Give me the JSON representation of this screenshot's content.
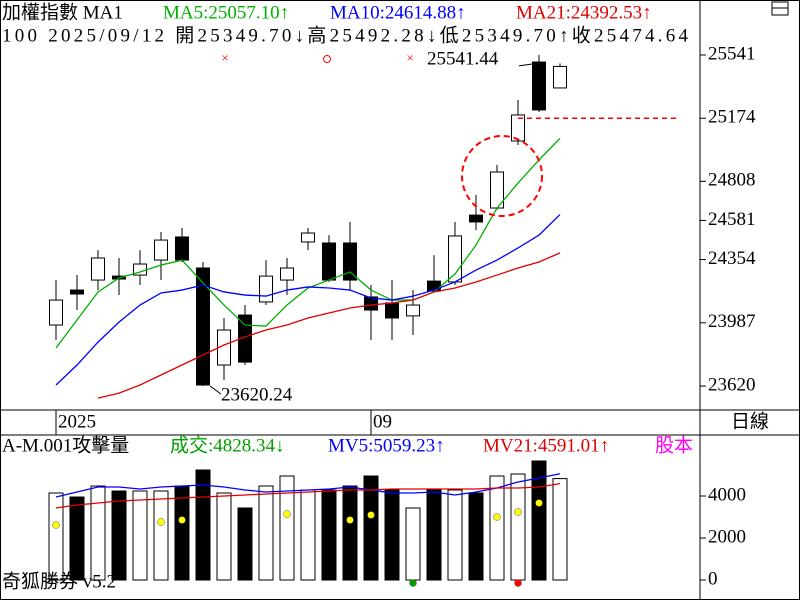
{
  "chart_data": [
    {
      "type": "candlestick",
      "title": "加權指數 MA1",
      "info": "100 2025/09/12 開25349.70↓高25492.28↓低25349.70↑收25474.64",
      "period": "日線",
      "categories": [
        "2025",
        null,
        null,
        null,
        null,
        null,
        null,
        null,
        null,
        null,
        null,
        null,
        null,
        null,
        null,
        "09",
        null,
        null,
        null,
        null,
        null,
        null,
        null,
        null,
        null
      ],
      "open": [
        23974,
        24177,
        24235,
        24258,
        24264,
        24351,
        24485,
        24305,
        23742,
        24032,
        24108,
        24235,
        24456,
        24450,
        24450,
        24137,
        24102,
        24027,
        24229,
        24224,
        24612,
        24653,
        25042,
        25500,
        25349.7
      ],
      "high": [
        24235,
        24264,
        24409,
        24363,
        24409,
        24514,
        24537,
        24340,
        24015,
        24090,
        24351,
        24363,
        24537,
        24496,
        24572,
        24206,
        24235,
        24177,
        24380,
        24572,
        24729,
        24903,
        25280,
        25541.44,
        25492.28
      ],
      "low": [
        23887,
        24061,
        24177,
        24148,
        24206,
        24235,
        24340,
        23620.24,
        23655,
        23742,
        24090,
        24148,
        24409,
        24224,
        24177,
        23887,
        23887,
        23916,
        24166,
        24206,
        24525,
        24642,
        25019,
        25210,
        25349.7
      ],
      "close": [
        24119,
        24154,
        24363,
        24241,
        24328,
        24467,
        24351,
        23626,
        23945,
        23759,
        24258,
        24305,
        24508,
        24235,
        24235,
        24061,
        24015,
        24090,
        24171,
        24491,
        24572,
        24862,
        25193,
        25222,
        25474.64
      ],
      "series": [
        {
          "name": "MA5:25057.10↑",
          "color": "#00b000",
          "values": [
            23841,
            24003,
            24166,
            24247,
            24282,
            24322,
            24351,
            24218,
            24090,
            23974,
            23968,
            24090,
            24189,
            24235,
            24282,
            24177,
            24119,
            24119,
            24166,
            24270,
            24438,
            24653,
            24798,
            24932,
            25057.1
          ]
        },
        {
          "name": "MA10:24614.88↑",
          "color": "#0000ff",
          "values": [
            23626,
            23742,
            23875,
            23991,
            24090,
            24160,
            24177,
            24206,
            24166,
            24148,
            24142,
            24177,
            24195,
            24189,
            24177,
            24131,
            24119,
            24142,
            24177,
            24224,
            24293,
            24351,
            24421,
            24496,
            24614.88
          ]
        },
        {
          "name": "MA21:24392.53↑",
          "color": "#e00000",
          "values": [
            null,
            null,
            23550,
            23579,
            23626,
            23684,
            23742,
            23800,
            23858,
            23905,
            23945,
            23974,
            24015,
            24044,
            24073,
            24090,
            24102,
            24119,
            24166,
            24189,
            24224,
            24264,
            24305,
            24340,
            24392.53
          ]
        }
      ],
      "reference_line": {
        "value": 25174,
        "color": "#ff0000"
      },
      "ylim": [
        23481,
        25860
      ],
      "yticks": [
        25541,
        25174,
        24808,
        24581,
        24354,
        23987,
        23620
      ]
    },
    {
      "type": "bar",
      "title": "A-M.001攻擊量",
      "footer": "奇狐勝券 v5.2",
      "extra": "股本",
      "series": [
        {
          "name": "成交:4828.34↓",
          "color": "#00a000",
          "values": [
            4143,
            3952,
            4476,
            4238,
            4238,
            4238,
            4476,
            5238,
            4143,
            3429,
            4476,
            4952,
            4286,
            4286,
            4476,
            4952,
            4286,
            3429,
            4286,
            4286,
            4143,
            4952,
            5048,
            5667,
            4828.34
          ]
        },
        {
          "name": "MV5:5059.23↑",
          "color": "#0000ff",
          "values": [
            3952,
            4190,
            4429,
            4429,
            4333,
            4429,
            4476,
            4524,
            4429,
            4286,
            4190,
            4238,
            4286,
            4333,
            4429,
            4286,
            4143,
            4143,
            4190,
            4048,
            4190,
            4381,
            4667,
            4857,
            5059.23
          ]
        },
        {
          "name": "MV21:4591.01↑",
          "color": "#e00000",
          "values": [
            3429,
            3571,
            3667,
            3762,
            3810,
            3857,
            3905,
            3952,
            4000,
            4048,
            4095,
            4143,
            4190,
            4238,
            4286,
            4286,
            4333,
            4333,
            4333,
            4333,
            4333,
            4381,
            4381,
            4429,
            4591.01
          ]
        }
      ],
      "markers": [
        {
          "color": "#ffff00",
          "values": [
            2619,
            null,
            null,
            null,
            null,
            2762,
            2857,
            null,
            null,
            null,
            null,
            3143,
            null,
            null,
            2857,
            3095,
            null,
            null,
            null,
            null,
            null,
            3000,
            3238,
            3667,
            null
          ]
        },
        {
          "color": "#00a000",
          "values": [
            null,
            null,
            null,
            null,
            null,
            null,
            null,
            null,
            null,
            null,
            null,
            null,
            null,
            null,
            null,
            null,
            null,
            -143,
            null,
            null,
            null,
            null,
            null,
            null,
            null
          ]
        },
        {
          "color": "#ff0000",
          "values": [
            null,
            null,
            null,
            null,
            null,
            null,
            null,
            null,
            null,
            null,
            null,
            null,
            null,
            null,
            null,
            null,
            null,
            null,
            null,
            null,
            null,
            null,
            -143,
            null,
            null
          ]
        }
      ],
      "ylim": [
        -952,
        6905
      ],
      "yticks": [
        4000,
        2000,
        0
      ]
    }
  ]
}
